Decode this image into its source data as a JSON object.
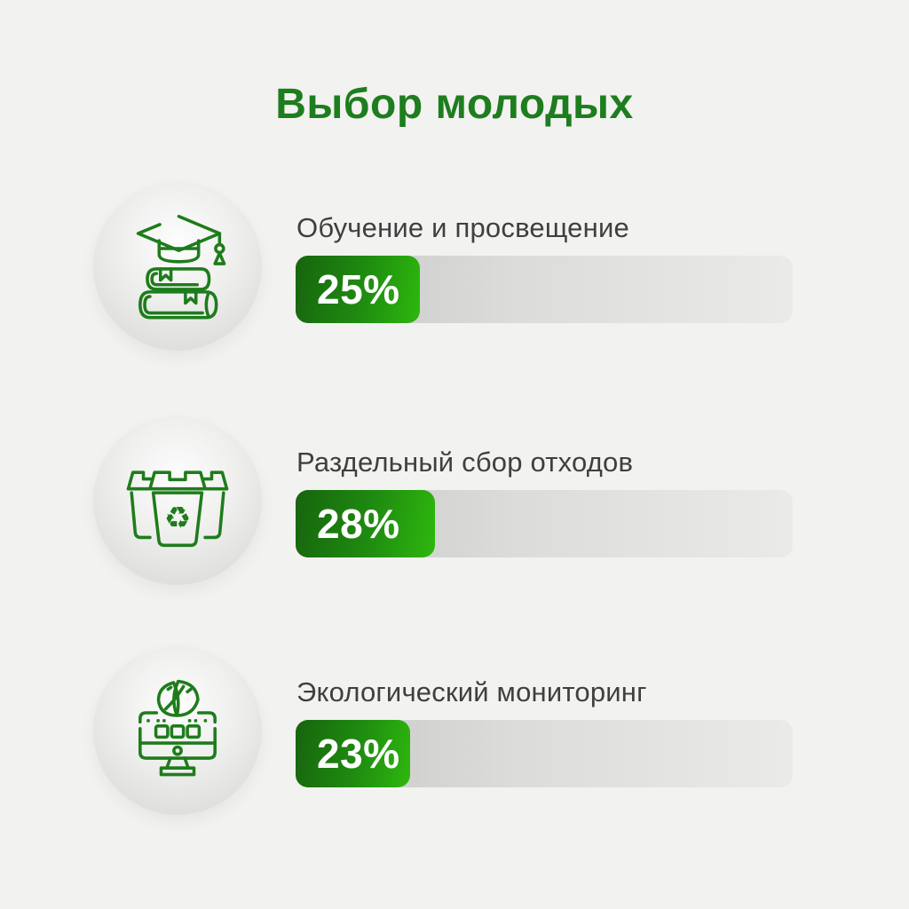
{
  "page": {
    "title": "Выбор молодых",
    "background": "#f2f2f0"
  },
  "colors": {
    "title_green": "#1e7d1e",
    "icon_stroke_green": "#1e7c1b",
    "label_text": "#3f3f3f",
    "percent_text": "#ffffff",
    "bar_fill_dark": "#17640e",
    "bar_fill_bright": "#2eb80d",
    "bar_track_dark": "#c7c7c6",
    "bar_track_light": "#eaeae9"
  },
  "chart_data": {
    "type": "bar",
    "orientation": "horizontal",
    "title": "Выбор молодых",
    "categories": [
      "Обучение и просвещение",
      "Раздельный сбор отходов",
      "Экологический мониторинг"
    ],
    "values": [
      25,
      28,
      23
    ],
    "unit": "%",
    "value_labels": [
      "25%",
      "28%",
      "23%"
    ],
    "xlim": [
      0,
      100
    ],
    "grid": false,
    "legend": false,
    "icons": [
      "graduation-cap-books",
      "recycling-bins",
      "eco-monitoring-computer"
    ]
  },
  "rows": [
    {
      "icon": "graduation-books-icon",
      "label": "Обучение и просвещение",
      "percent": 25,
      "percent_label": "25%"
    },
    {
      "icon": "recycling-bins-icon",
      "label": "Раздельный сбор отходов",
      "percent": 28,
      "percent_label": "28%"
    },
    {
      "icon": "eco-monitoring-icon",
      "label": "Экологический мониторинг",
      "percent": 23,
      "percent_label": "23%"
    }
  ]
}
